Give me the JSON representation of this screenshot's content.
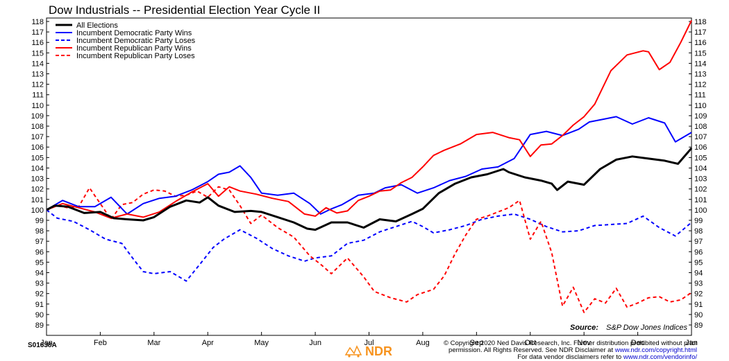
{
  "chart_data": {
    "type": "line",
    "title": "Dow Industrials -- Presidential Election Year Cycle II",
    "x_tick_labels": [
      "Jan",
      "Feb",
      "Mar",
      "Apr",
      "May",
      "Jun",
      "Jul",
      "Aug",
      "Sep",
      "Oct",
      "Nov",
      "Dec",
      "Jan"
    ],
    "ylim": [
      89,
      118
    ],
    "y_ticks": [
      89,
      90,
      91,
      92,
      93,
      94,
      95,
      96,
      97,
      98,
      99,
      100,
      101,
      102,
      103,
      104,
      105,
      106,
      107,
      108,
      109,
      110,
      111,
      112,
      113,
      114,
      115,
      116,
      117,
      118
    ],
    "y_axis_sides": "left and right",
    "grid": false,
    "legend_position": "top-left",
    "source_label": "Source:",
    "source_value": "S&P Dow Jones Indices",
    "series": [
      {
        "name": "All Elections",
        "color": "#000000",
        "style": "solid",
        "width": 3,
        "x": [
          0,
          0.15,
          0.4,
          0.7,
          1,
          1.25,
          1.5,
          1.8,
          2,
          2.3,
          2.6,
          2.85,
          3,
          3.2,
          3.5,
          3.8,
          4,
          4.3,
          4.6,
          4.85,
          5,
          5.3,
          5.6,
          5.9,
          6.2,
          6.5,
          6.8,
          7,
          7.3,
          7.6,
          7.9,
          8.2,
          8.5,
          8.6,
          8.9,
          9.2,
          9.4,
          9.5,
          9.7,
          10,
          10.3,
          10.6,
          10.9,
          11.2,
          11.5,
          11.75,
          12
        ],
        "y": [
          100,
          100.4,
          100.3,
          99.7,
          99.8,
          99.2,
          99.1,
          99.0,
          99.3,
          100.3,
          100.9,
          100.7,
          101.2,
          100.4,
          99.8,
          99.9,
          99.8,
          99.3,
          98.8,
          98.2,
          98.1,
          98.8,
          98.8,
          98.3,
          99.1,
          98.9,
          99.6,
          100.1,
          101.6,
          102.5,
          103.1,
          103.4,
          103.9,
          103.6,
          103.1,
          102.8,
          102.5,
          101.9,
          102.7,
          102.4,
          103.9,
          104.8,
          105.1,
          104.9,
          104.7,
          104.4,
          105.9
        ]
      },
      {
        "name": "Incumbent Democratic Party Wins",
        "color": "#0000ff",
        "style": "solid",
        "width": 2,
        "x": [
          0,
          0.3,
          0.6,
          0.9,
          1.2,
          1.5,
          1.8,
          2.1,
          2.4,
          2.7,
          3,
          3.2,
          3.4,
          3.6,
          3.8,
          4,
          4.3,
          4.6,
          4.9,
          5.1,
          5.3,
          5.5,
          5.8,
          6.1,
          6.3,
          6.6,
          6.9,
          7.2,
          7.5,
          7.8,
          8.1,
          8.4,
          8.7,
          9,
          9.3,
          9.6,
          9.9,
          10.1,
          10.3,
          10.6,
          10.9,
          11.2,
          11.5,
          11.7,
          12
        ],
        "y": [
          100,
          100.9,
          100.3,
          100.3,
          101.2,
          99.6,
          100.6,
          101.1,
          101.3,
          101.9,
          102.7,
          103.4,
          103.6,
          104.2,
          103.1,
          101.6,
          101.4,
          101.6,
          100.6,
          99.6,
          100.1,
          100.5,
          101.4,
          101.6,
          102.1,
          102.4,
          101.6,
          102.1,
          102.8,
          103.2,
          103.9,
          104.1,
          104.9,
          107.2,
          107.5,
          107.1,
          107.7,
          108.4,
          108.6,
          108.9,
          108.2,
          108.8,
          108.3,
          106.5,
          107.4
        ]
      },
      {
        "name": "Incumbent Democratic Party Loses",
        "color": "#0000ff",
        "style": "dashed",
        "width": 2,
        "x": [
          0,
          0.2,
          0.5,
          0.8,
          1.1,
          1.4,
          1.6,
          1.8,
          2,
          2.3,
          2.6,
          2.9,
          3.1,
          3.3,
          3.6,
          3.9,
          4.2,
          4.5,
          4.8,
          5,
          5.3,
          5.6,
          5.9,
          6.2,
          6.5,
          6.8,
          7,
          7.2,
          7.5,
          7.8,
          8.1,
          8.4,
          8.7,
          9,
          9.3,
          9.6,
          9.9,
          10.2,
          10.5,
          10.8,
          11.1,
          11.4,
          11.7,
          12
        ],
        "y": [
          100,
          99.2,
          98.9,
          98.1,
          97.2,
          96.8,
          95.4,
          94.1,
          93.9,
          94.1,
          93.2,
          95.1,
          96.4,
          97.2,
          98.1,
          97.3,
          96.3,
          95.6,
          95.1,
          95.4,
          95.6,
          96.8,
          97.1,
          97.9,
          98.4,
          98.9,
          98.4,
          97.8,
          98.1,
          98.5,
          99.1,
          99.4,
          99.6,
          99.1,
          98.4,
          97.9,
          98.0,
          98.5,
          98.6,
          98.7,
          99.4,
          98.3,
          97.5,
          98.8
        ]
      },
      {
        "name": "Incumbent Republican Party Wins",
        "color": "#ff0000",
        "style": "solid",
        "width": 2,
        "x": [
          0,
          0.3,
          0.6,
          0.9,
          1.2,
          1.5,
          1.8,
          2.1,
          2.4,
          2.7,
          3,
          3.2,
          3.4,
          3.6,
          3.9,
          4.2,
          4.5,
          4.8,
          5,
          5.2,
          5.4,
          5.6,
          5.8,
          6,
          6.2,
          6.4,
          6.6,
          6.8,
          7,
          7.2,
          7.4,
          7.7,
          8,
          8.3,
          8.6,
          8.8,
          9,
          9.2,
          9.4,
          9.6,
          9.8,
          10,
          10.2,
          10.5,
          10.8,
          11.1,
          11.2,
          11.4,
          11.6,
          11.8,
          12
        ],
        "y": [
          100,
          100.6,
          100.2,
          99.8,
          99.2,
          99.6,
          99.3,
          99.8,
          100.8,
          101.7,
          102.5,
          101.3,
          102.2,
          101.8,
          101.5,
          101.1,
          100.8,
          99.6,
          99.4,
          100.2,
          99.7,
          99.9,
          100.9,
          101.3,
          101.8,
          101.9,
          102.6,
          103.1,
          104.1,
          105.2,
          105.7,
          106.3,
          107.2,
          107.4,
          106.9,
          106.7,
          105.1,
          106.2,
          106.3,
          107.1,
          108.1,
          108.9,
          110.1,
          113.3,
          114.8,
          115.2,
          115.1,
          113.4,
          114.1,
          116.0,
          118.1
        ]
      },
      {
        "name": "Incumbent Republican Party Loses",
        "color": "#ff0000",
        "style": "dashed",
        "width": 2,
        "x": [
          0,
          0.2,
          0.4,
          0.6,
          0.8,
          1,
          1.2,
          1.4,
          1.6,
          1.8,
          2,
          2.2,
          2.4,
          2.6,
          2.8,
          3,
          3.2,
          3.4,
          3.6,
          3.8,
          4,
          4.3,
          4.6,
          4.9,
          5.1,
          5.3,
          5.6,
          5.9,
          6.1,
          6.4,
          6.7,
          6.9,
          7.2,
          7.4,
          7.6,
          7.8,
          8,
          8.2,
          8.4,
          8.6,
          8.8,
          9,
          9.2,
          9.4,
          9.6,
          9.8,
          10,
          10.2,
          10.4,
          10.6,
          10.8,
          11,
          11.2,
          11.4,
          11.6,
          11.8,
          12
        ],
        "y": [
          100,
          100.4,
          100.2,
          100.3,
          102.1,
          100.6,
          99.1,
          100.5,
          100.7,
          101.5,
          101.9,
          101.8,
          101.3,
          101.4,
          101.8,
          101.2,
          102.2,
          101.9,
          100.4,
          98.7,
          99.5,
          98.3,
          97.4,
          95.6,
          94.8,
          93.9,
          95.4,
          93.6,
          92.2,
          91.6,
          91.2,
          91.9,
          92.4,
          93.7,
          95.8,
          97.6,
          99.1,
          99.4,
          99.8,
          100.2,
          100.9,
          97.2,
          98.9,
          95.9,
          90.8,
          92.6,
          90.2,
          91.5,
          91.1,
          92.5,
          90.7,
          91.1,
          91.6,
          91.7,
          91.2,
          91.4,
          92.1
        ]
      }
    ]
  },
  "footer": {
    "chart_code": "S01638A",
    "copyright_line1": "© Copyright 2020 Ned Davis Research, Inc. Further distribution prohibited without prior",
    "copyright_line2_a": "permission. All Rights Reserved. See NDR Disclaimer at ",
    "copyright_line2_link": "www.ndr.com/copyright.html",
    "copyright_line3_a": "For data vendor disclaimers refer to ",
    "copyright_line3_link": "www.ndr.com/vendorinfo/",
    "logo_text": "NDR",
    "logo_color": "#f7931e"
  }
}
